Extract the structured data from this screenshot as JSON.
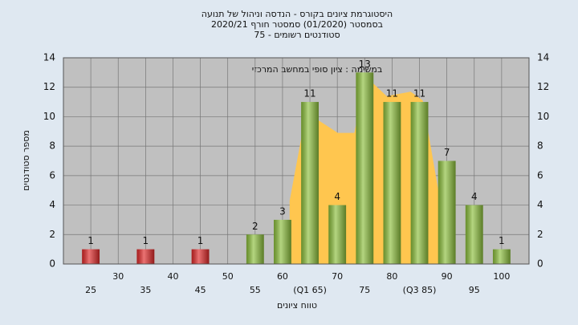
{
  "chart_data": {
    "type": "histogram",
    "title": [
      "היסטוגרמת ציונים בקורס - הנדסה וניהול של תנועה",
      "בסמסטר  (01/2020)  סמסטר חורף 2020/21",
      "סטודנטים רשומים - 75"
    ],
    "annotation": "במשימה : ציון סופי במחשב המרכזי",
    "y_label": "מספר סטודנטים",
    "x_label": "טווח ציונים",
    "x": [
      25,
      35,
      45,
      55,
      60,
      65,
      70,
      75,
      80,
      85,
      90,
      95,
      100
    ],
    "values": [
      1,
      1,
      1,
      2,
      3,
      11,
      4,
      13,
      11,
      11,
      7,
      4,
      1
    ],
    "colors": [
      "#e02828",
      "#e02828",
      "#e02828",
      "#8cbf3c",
      "#8cbf3c",
      "#8cbf3c",
      "#8cbf3c",
      "#8cbf3c",
      "#8cbf3c",
      "#8cbf3c",
      "#8cbf3c",
      "#8cbf3c",
      "#8cbf3c"
    ],
    "area": {
      "color": "#ffc64f",
      "x": [
        61.3,
        64.3,
        70.1,
        73.1,
        75.3,
        79,
        83.4,
        85.6,
        89
      ],
      "values": [
        4.3,
        10.3,
        8.9,
        8.9,
        12.7,
        11.4,
        11.7,
        11.1,
        3.8
      ]
    },
    "xlim": [
      20,
      105
    ],
    "ylim": [
      0,
      14
    ],
    "xticks": [
      25,
      30,
      35,
      40,
      45,
      50,
      55,
      60,
      {
        "value": 65,
        "label": "(Q1 65)"
      },
      70,
      75,
      80,
      {
        "value": 85,
        "label": "(Q3 85)"
      },
      90,
      95,
      100
    ],
    "yticks": [
      0,
      2,
      4,
      6,
      8,
      10,
      12,
      14
    ],
    "grid": true
  }
}
